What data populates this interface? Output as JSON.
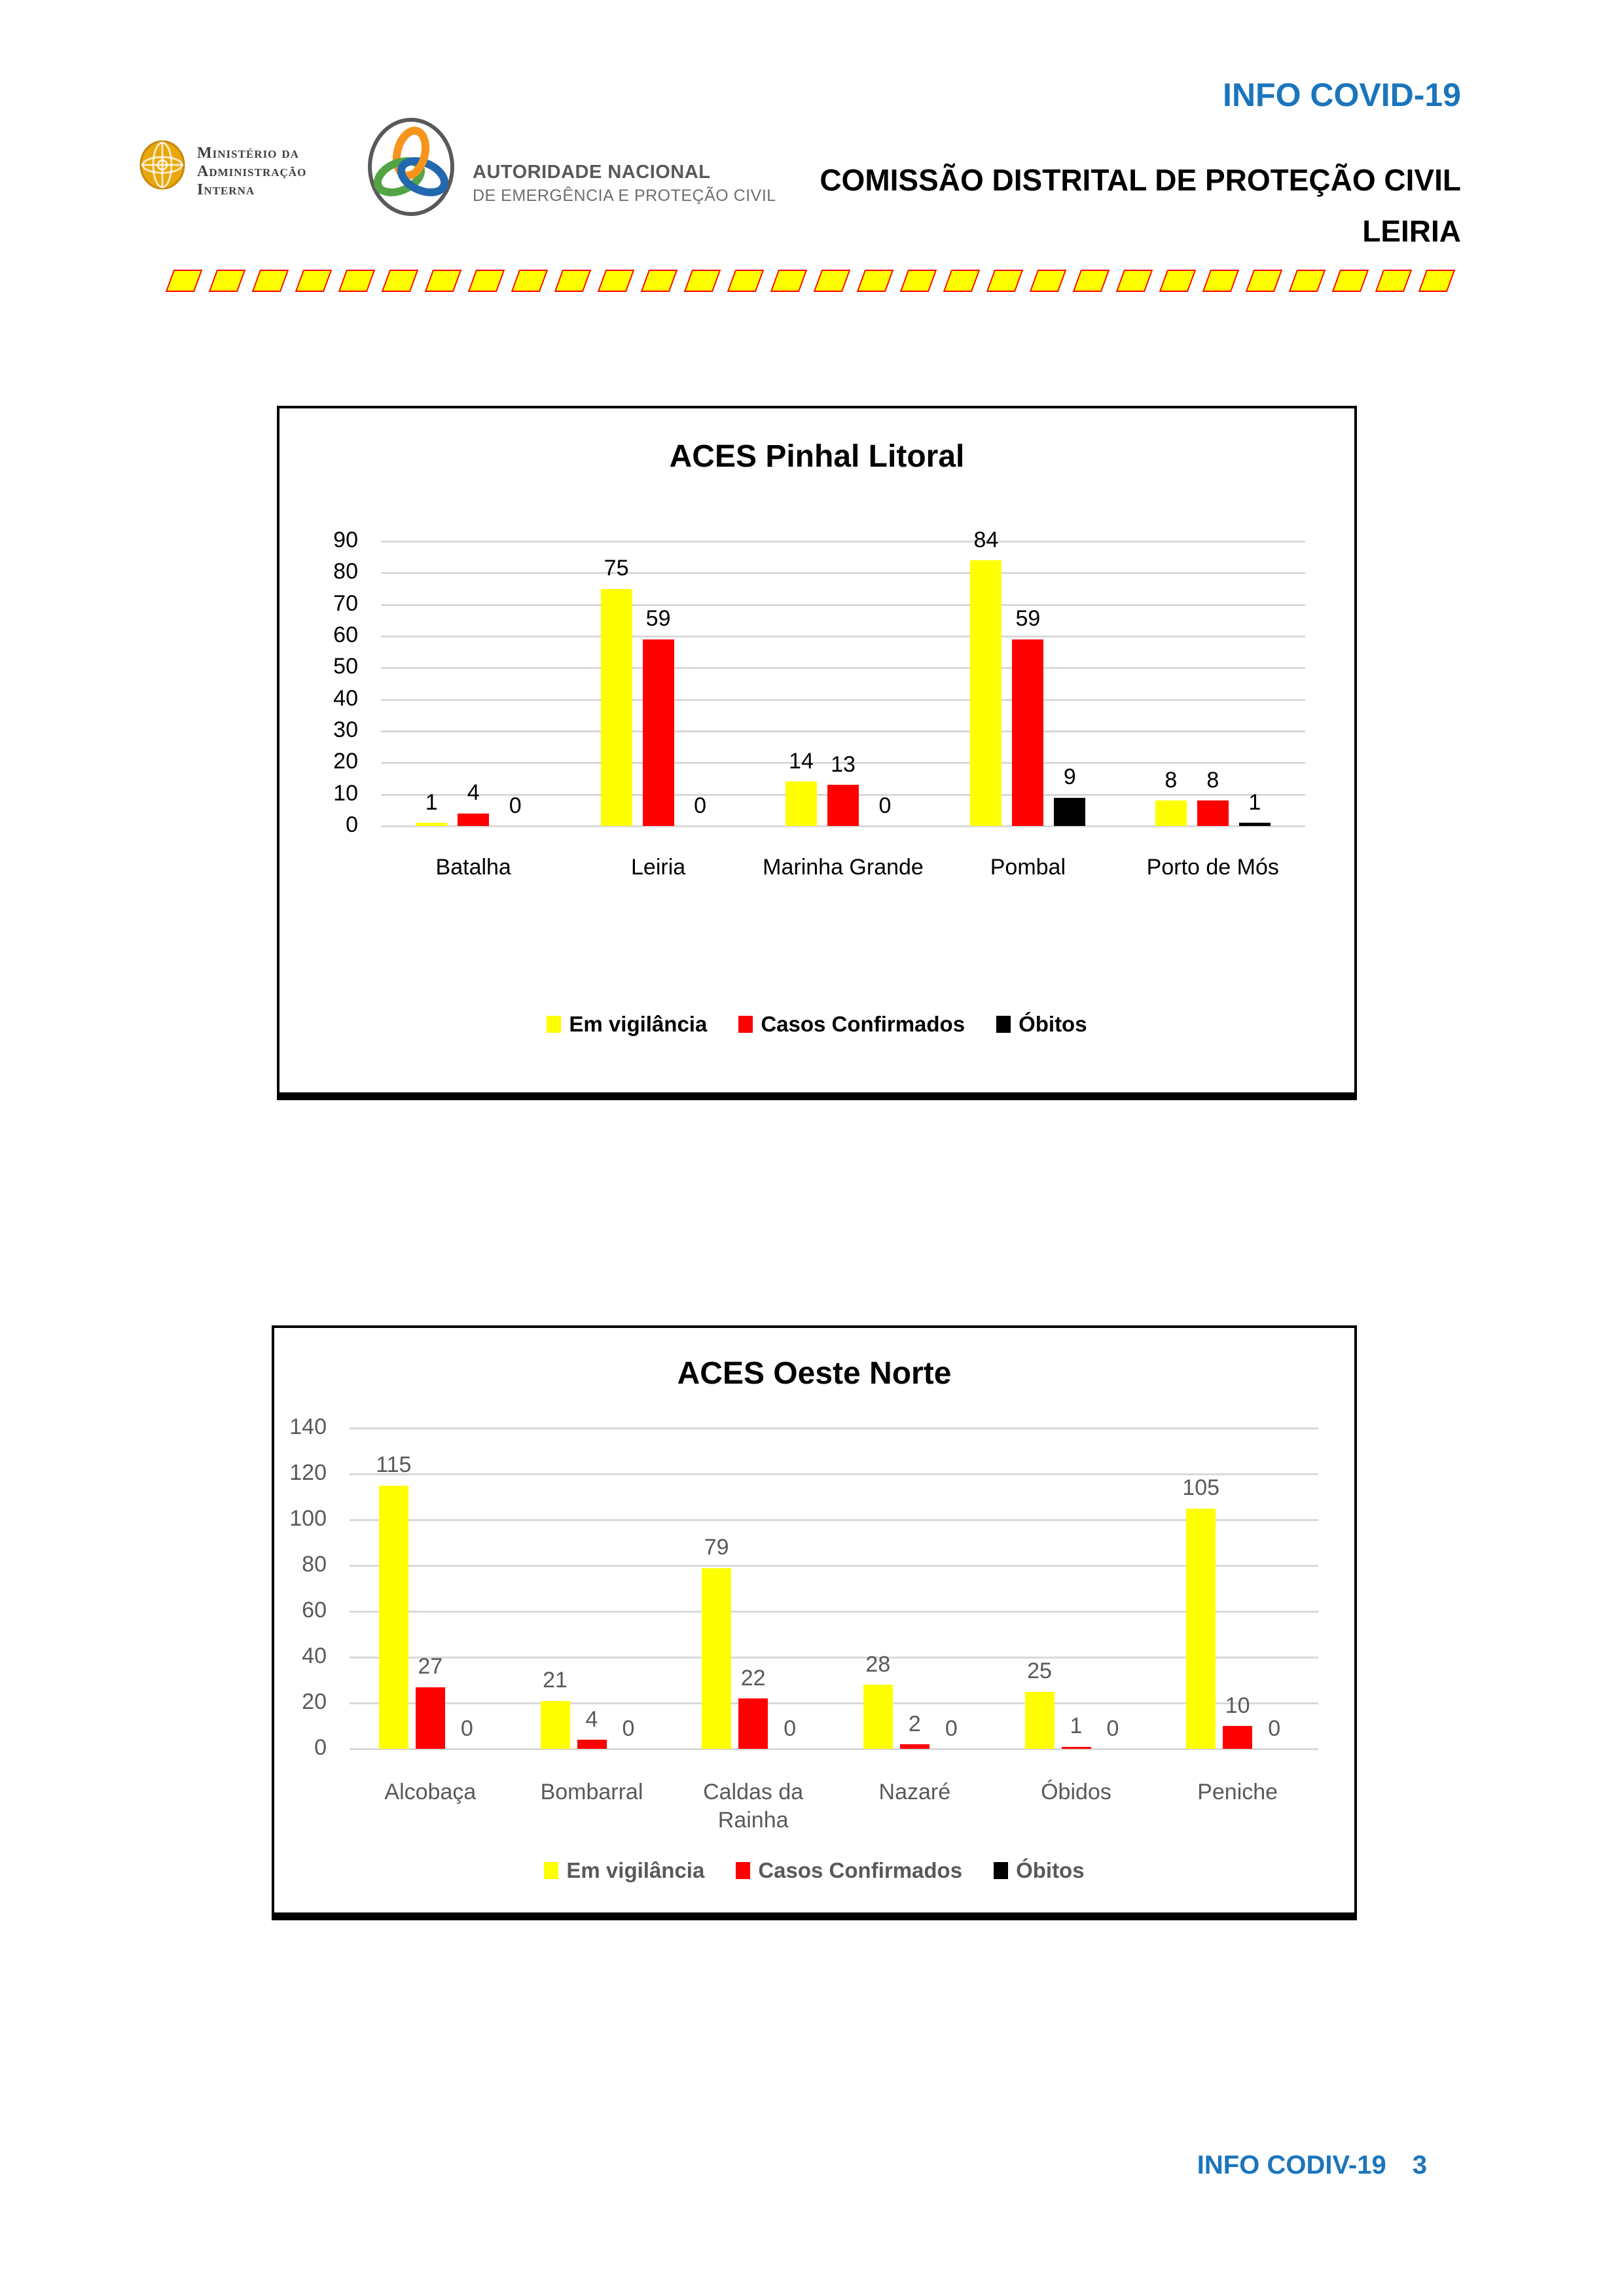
{
  "header": {
    "mai_logo": {
      "icon": "armillary-sphere-emblem",
      "lines": [
        "Ministério da",
        "Administração",
        "Interna"
      ]
    },
    "anepc_logo": {
      "icon": "trefoil-knot-emblem",
      "line1": "AUTORIDADE NACIONAL",
      "line2": "DE EMERGÊNCIA E PROTEÇÃO CIVIL"
    },
    "info_title": "INFO COVID-19",
    "commission_line1": "COMISSÃO DISTRITAL DE PROTEÇÃO CIVIL",
    "commission_line2": "LEIRIA"
  },
  "separator": {
    "dash_count": 30,
    "fill": "#FFFF00",
    "border": "#FF0000"
  },
  "colors": {
    "accent_blue": "#1B75BC",
    "series_vigilancia": "#FFFF00",
    "series_confirmados": "#FF0000",
    "series_obitos": "#000000",
    "gridline": "#D9D9D9",
    "chart2_text": "#595959"
  },
  "chart_data": [
    {
      "type": "bar",
      "title": "ACES Pinhal Litoral",
      "categories": [
        "Batalha",
        "Leiria",
        "Marinha Grande",
        "Pombal",
        "Porto de Mós"
      ],
      "series": [
        {
          "name": "Em vigilância",
          "color": "#FFFF00",
          "values": [
            1,
            75,
            14,
            84,
            8
          ]
        },
        {
          "name": "Casos Confirmados",
          "color": "#FF0000",
          "values": [
            4,
            59,
            13,
            59,
            8
          ]
        },
        {
          "name": "Óbitos",
          "color": "#000000",
          "values": [
            0,
            0,
            0,
            9,
            1
          ]
        }
      ],
      "xlabel": "",
      "ylabel": "",
      "ylim": [
        0,
        90
      ],
      "ytick_step": 10,
      "grid": true,
      "legend_position": "bottom",
      "text_color": "#000000"
    },
    {
      "type": "bar",
      "title": "ACES Oeste Norte",
      "categories": [
        "Alcobaça",
        "Bombarral",
        "Caldas da Rainha",
        "Nazaré",
        "Óbidos",
        "Peniche"
      ],
      "series": [
        {
          "name": "Em vigilância",
          "color": "#FFFF00",
          "values": [
            115,
            21,
            79,
            28,
            25,
            105
          ]
        },
        {
          "name": "Casos Confirmados",
          "color": "#FF0000",
          "values": [
            27,
            4,
            22,
            2,
            1,
            10
          ]
        },
        {
          "name": "Óbitos",
          "color": "#000000",
          "values": [
            0,
            0,
            0,
            0,
            0,
            0
          ]
        }
      ],
      "xlabel": "",
      "ylabel": "",
      "ylim": [
        0,
        140
      ],
      "ytick_step": 20,
      "grid": true,
      "legend_position": "bottom",
      "text_color": "#595959"
    }
  ],
  "footer": {
    "label": "INFO CODIV-19",
    "page": "3"
  }
}
